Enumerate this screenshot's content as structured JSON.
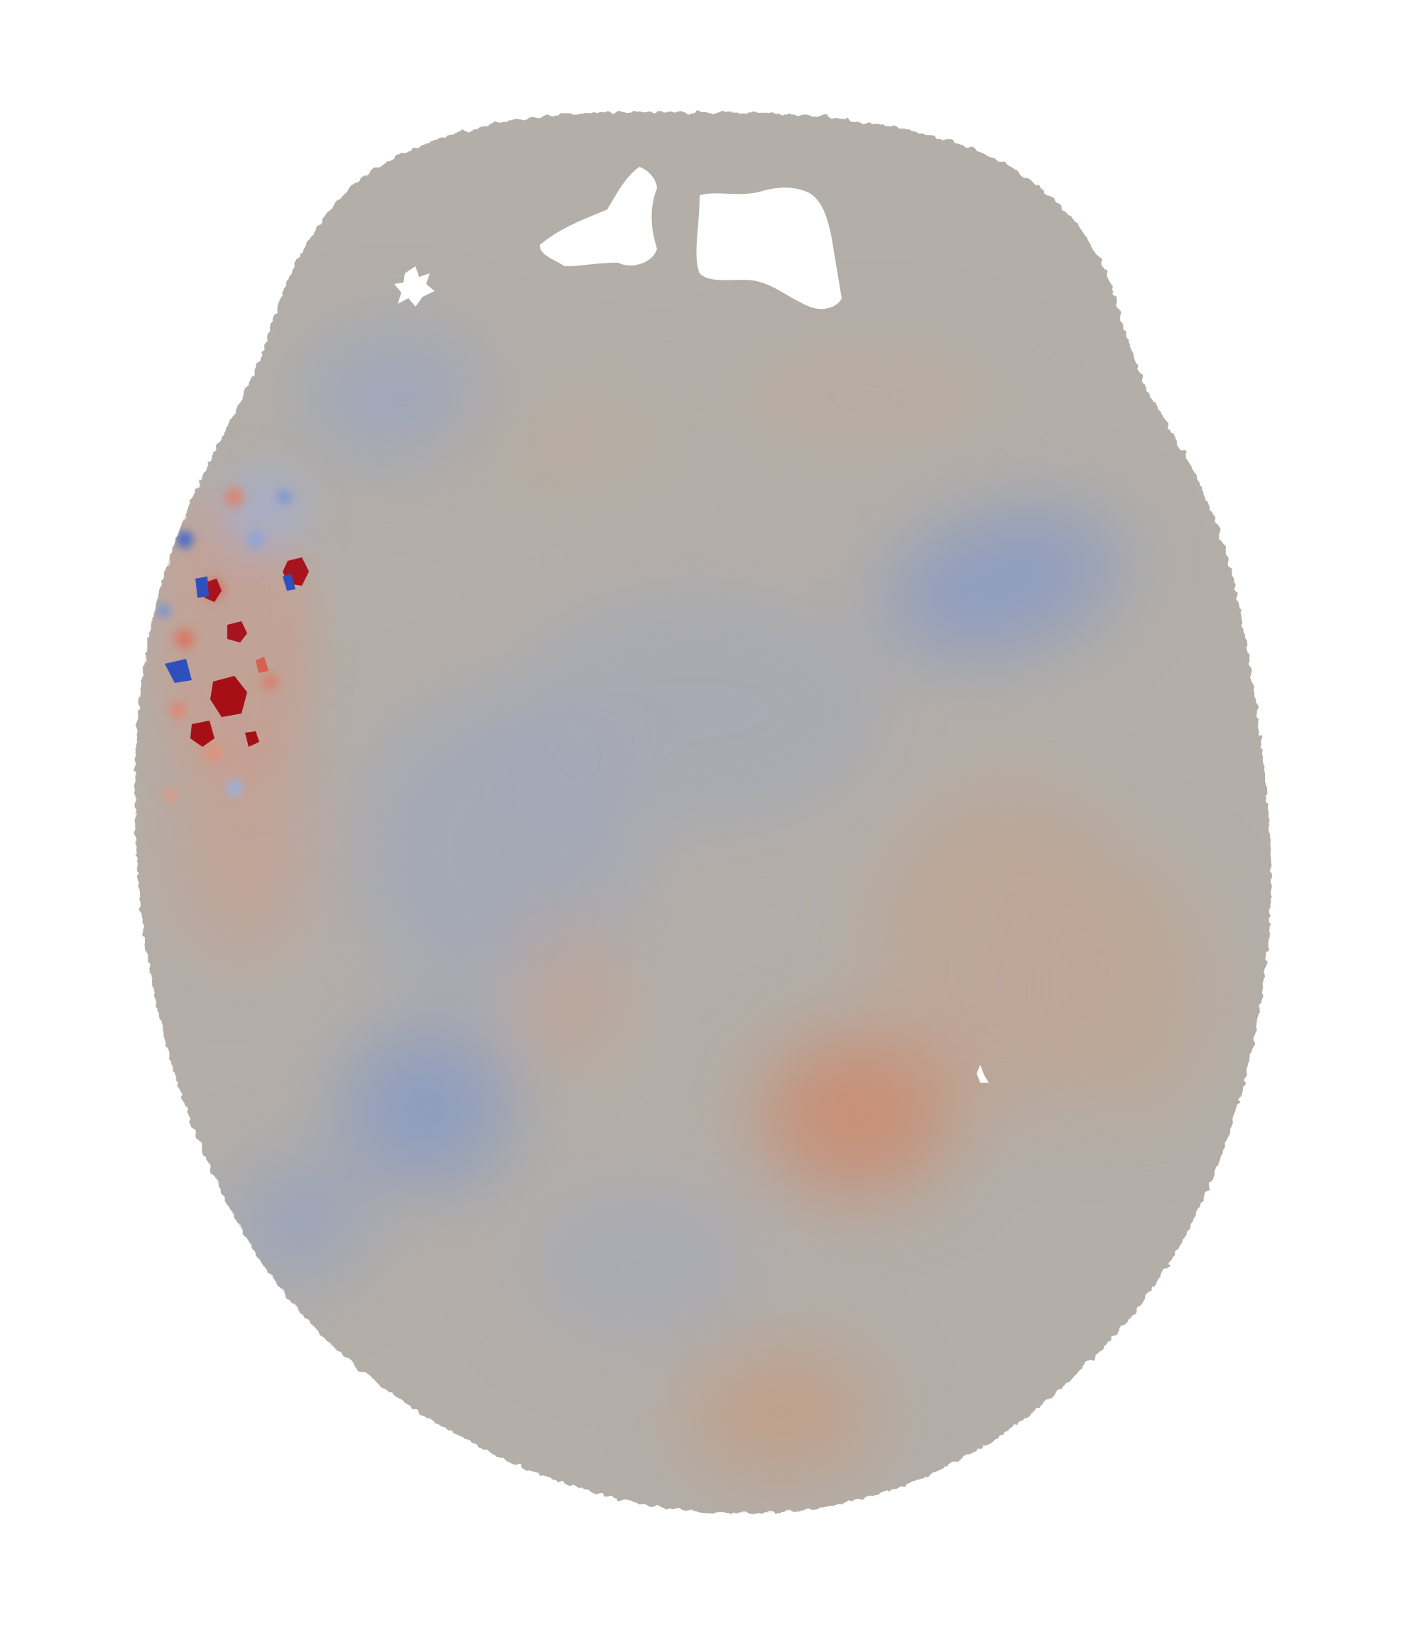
{
  "figure": {
    "background_color": "#ffffff",
    "colormap": {
      "name": "coolwarm",
      "negative_color": "#3b4cc0",
      "neutral_color": "#b2aba7",
      "positive_color": "#b40426",
      "saturated_positive_color": "#a50f15",
      "saturated_negative_color": "#2c48b8"
    }
  }
}
